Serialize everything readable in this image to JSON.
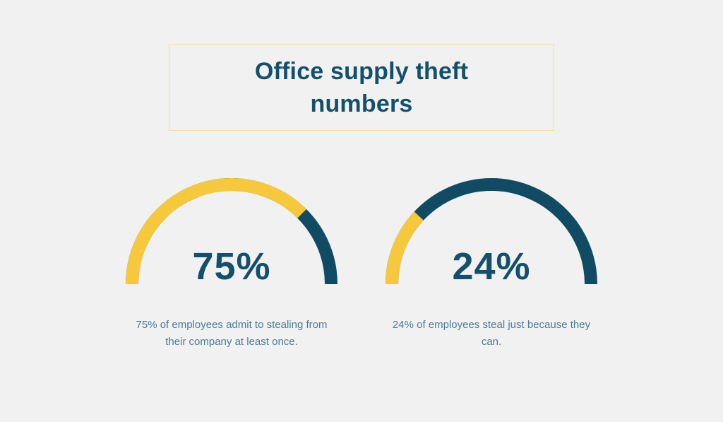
{
  "page": {
    "background": "#F1F1F1"
  },
  "header": {
    "title": "Office supply theft numbers",
    "title_line1": "Office supply theft",
    "title_line2": "numbers",
    "box_border_color": "#F5DD9A"
  },
  "chart_data": {
    "type": "gauge",
    "shape": "semicircle",
    "title": "Office supply theft numbers",
    "range": [
      0,
      100
    ],
    "gauges": [
      {
        "value": 75,
        "unit": "%",
        "label": "75%",
        "caption": "75% of employees admit to stealing from their company at least once."
      },
      {
        "value": 24,
        "unit": "%",
        "label": "24%",
        "caption": "24% of employees steal just because they can."
      }
    ],
    "colors": {
      "filled": "#F6C93C",
      "remainder": "#114A63",
      "value_text": "#14506B",
      "caption_text": "#4A7C97"
    }
  }
}
